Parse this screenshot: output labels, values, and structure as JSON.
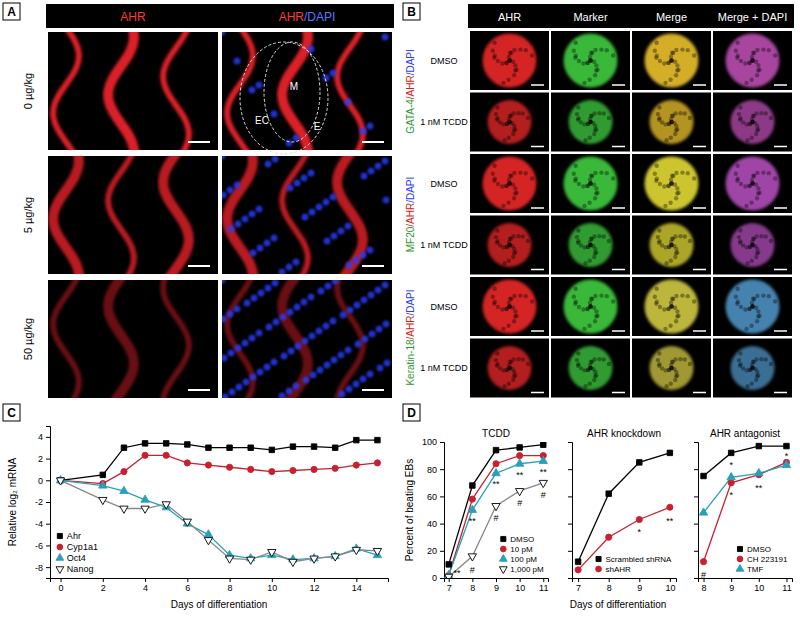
{
  "panel_labels": [
    "A",
    "B",
    "C",
    "D"
  ],
  "image_panels": {
    "A": {
      "columns": [
        "AHR",
        "AHR/DAPI"
      ],
      "rows": [
        "0 µg/kg",
        "5 µg/kg",
        "50 µg/kg"
      ],
      "regions": [
        "M",
        "EC",
        "E"
      ]
    },
    "B": {
      "columns": [
        "AHR",
        "Marker",
        "Merge",
        "Merge + DAPI"
      ],
      "groups": [
        {
          "label": "GATA-4/AHR/DAPI",
          "rows": [
            "DMSO",
            "1 nM TCDD"
          ]
        },
        {
          "label": "MF20/AHR/DAPI",
          "rows": [
            "DMSO",
            "1 nM TCDD"
          ]
        },
        {
          "label": "Keratin-18/AHR/DAPI",
          "rows": [
            "DMSO",
            "1 nM TCDD"
          ]
        }
      ]
    }
  },
  "chart_data": [
    {
      "type": "line",
      "x_label": "Days of differentiation",
      "y_label": "Relative log₂ mRNA",
      "x": [
        0,
        2,
        3,
        4,
        5,
        6,
        7,
        8,
        9,
        10,
        11,
        12,
        13,
        14,
        15
      ],
      "xlim": [
        -0.5,
        15.5
      ],
      "xticks": [
        0,
        2,
        4,
        6,
        8,
        10,
        12,
        14
      ],
      "ylim": [
        -9,
        5
      ],
      "yticks": [
        -8,
        -6,
        -4,
        -2,
        0,
        2,
        4
      ],
      "legend": "lower left",
      "series": [
        {
          "name": "Ahr",
          "color": "#000000",
          "marker": "square",
          "values": [
            0,
            0.5,
            3.0,
            3.4,
            3.4,
            3.3,
            3.0,
            3.0,
            3.0,
            2.8,
            3.1,
            3.1,
            3.0,
            3.7,
            3.7
          ]
        },
        {
          "name": "Cyp1a1",
          "color": "#c8202f",
          "marker": "circle",
          "values": [
            0,
            -0.3,
            0.8,
            2.3,
            2.3,
            1.6,
            1.4,
            1.2,
            1.0,
            0.8,
            0.9,
            1.0,
            1.1,
            1.4,
            1.6
          ]
        },
        {
          "name": "Oct4",
          "color": "#2a9fb8",
          "marker": "triangle",
          "values": [
            0,
            -0.5,
            -1.0,
            -1.8,
            -2.5,
            -4.0,
            -5.0,
            -6.9,
            -7.2,
            -6.9,
            -7.3,
            -7.2,
            -7.0,
            -6.3,
            -6.9
          ]
        },
        {
          "name": "Nanog",
          "color": "#ffffff",
          "marker": "triangle-down",
          "values": [
            0,
            -1.8,
            -2.6,
            -2.6,
            -2.2,
            -3.8,
            -5.5,
            -7.2,
            -7.3,
            -6.6,
            -7.5,
            -7.2,
            -7.0,
            -6.4,
            -6.5
          ]
        }
      ]
    },
    {
      "type": "line",
      "title": "TCDD",
      "y_label": "Percent of beating EBs",
      "x": [
        7,
        8,
        9,
        10,
        11
      ],
      "xlim": [
        6.8,
        11.2
      ],
      "xticks": [
        7,
        8,
        9,
        10,
        11
      ],
      "ylim": [
        0,
        100
      ],
      "yticks": [
        0,
        20,
        40,
        60,
        80,
        100
      ],
      "legend": "lower right",
      "series": [
        {
          "name": "DMSO",
          "color": "#000000",
          "marker": "square",
          "values": [
            10,
            68,
            94,
            96,
            98
          ]
        },
        {
          "name": "10 pM",
          "color": "#c8202f",
          "marker": "circle",
          "values": [
            2,
            58,
            84,
            90,
            90
          ]
        },
        {
          "name": "100 pM",
          "color": "#2a9fb8",
          "marker": "triangle",
          "values": [
            2,
            50,
            77,
            84,
            86
          ]
        },
        {
          "name": "1,000 pM",
          "color": "#ffffff",
          "marker": "triangle-down",
          "values": [
            1,
            16,
            53,
            64,
            70
          ]
        }
      ],
      "annotations": [
        {
          "x": 7.35,
          "y": 4,
          "text": "**"
        },
        {
          "x": 8,
          "y": 42,
          "text": "**"
        },
        {
          "x": 8,
          "y": 6,
          "text": "#"
        },
        {
          "x": 9,
          "y": 69,
          "text": "**"
        },
        {
          "x": 9,
          "y": 44,
          "text": "#"
        },
        {
          "x": 10,
          "y": 76,
          "text": "**"
        },
        {
          "x": 10,
          "y": 55,
          "text": "#"
        },
        {
          "x": 11,
          "y": 78,
          "text": "**"
        },
        {
          "x": 11,
          "y": 61,
          "text": "#"
        }
      ]
    },
    {
      "type": "line",
      "title": "AHR knockdown",
      "x_label": "Days of differentiation",
      "tick_labels": "x",
      "x": [
        7,
        8,
        9,
        10
      ],
      "xlim": [
        6.8,
        10.2
      ],
      "xticks": [
        7,
        8,
        9,
        10
      ],
      "ylim": [
        0,
        100
      ],
      "yticks": [
        0,
        20,
        40,
        60,
        80,
        100
      ],
      "legend": "lower right",
      "series": [
        {
          "name": "Scrambled shRNA",
          "color": "#000000",
          "marker": "square",
          "values": [
            12,
            62,
            85,
            92
          ]
        },
        {
          "name": "shAHR",
          "color": "#c8202f",
          "marker": "circle",
          "values": [
            6,
            30,
            43,
            52
          ]
        }
      ],
      "annotations": [
        {
          "x": 9,
          "y": 34,
          "text": "*"
        },
        {
          "x": 10,
          "y": 42,
          "text": "**"
        }
      ]
    },
    {
      "type": "line",
      "title": "AHR antagonist",
      "tick_labels": "x",
      "x": [
        8,
        9,
        10,
        11
      ],
      "xlim": [
        7.8,
        11.2
      ],
      "xticks": [
        8,
        9,
        10,
        11
      ],
      "ylim": [
        0,
        100
      ],
      "yticks": [
        0,
        20,
        40,
        60,
        80,
        100
      ],
      "legend": "lower right",
      "series": [
        {
          "name": "DMSO",
          "color": "#000000",
          "marker": "square",
          "values": [
            75,
            92,
            97,
            97
          ]
        },
        {
          "name": "CH 223191",
          "color": "#c8202f",
          "marker": "circle",
          "values": [
            12,
            70,
            76,
            85
          ]
        },
        {
          "name": "TMF",
          "color": "#2a9fb8",
          "marker": "triangle",
          "values": [
            48,
            74,
            77,
            83
          ]
        }
      ],
      "annotations": [
        {
          "x": 8,
          "y": 2,
          "text": "#"
        },
        {
          "x": 9,
          "y": 83,
          "text": "*"
        },
        {
          "x": 9,
          "y": 61,
          "text": "*"
        },
        {
          "x": 10,
          "y": 66,
          "text": "**"
        },
        {
          "x": 11,
          "y": 90,
          "text": "*"
        }
      ]
    }
  ]
}
